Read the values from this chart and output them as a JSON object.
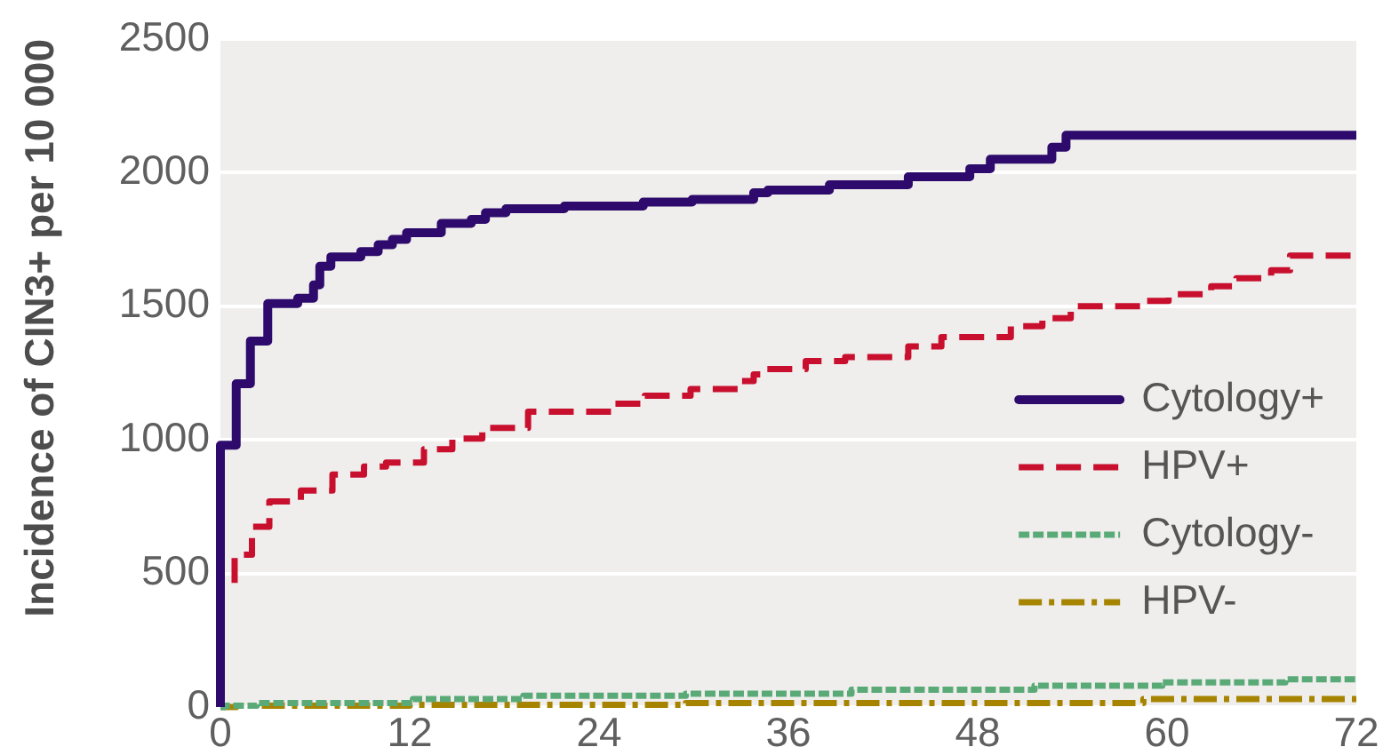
{
  "chart_data": {
    "type": "step",
    "ylabel": "Incidence of CIN3+ per 10 000",
    "xlim": [
      0,
      72
    ],
    "xticks": [
      0,
      12,
      24,
      36,
      48,
      60,
      72
    ],
    "ylim": [
      0,
      2500
    ],
    "yticks": [
      0,
      500,
      1000,
      1500,
      2000,
      2500
    ],
    "grid": "y",
    "legend": "bottom right",
    "series": [
      {
        "name": "Cytology+",
        "color": "#2d0a6b",
        "line_style": "solid",
        "x": [
          0,
          0,
          1.0,
          1.9,
          3.0,
          4.9,
          5.9,
          6.3,
          7.0,
          8.9,
          10.0,
          10.9,
          11.8,
          14.0,
          15.9,
          16.8,
          18.1,
          21.8,
          26.8,
          29.9,
          33.8,
          34.7,
          38.6,
          43.6,
          47.5,
          48.8,
          52.7,
          53.6,
          72
        ],
        "values": [
          0,
          980,
          1210,
          1370,
          1510,
          1530,
          1580,
          1650,
          1685,
          1705,
          1730,
          1750,
          1775,
          1810,
          1825,
          1850,
          1865,
          1875,
          1890,
          1900,
          1925,
          1935,
          1955,
          1985,
          2015,
          2050,
          2095,
          2140,
          2140
        ]
      },
      {
        "name": "HPV+",
        "color": "#c8102e",
        "line_style": "dashed",
        "x": [
          0.9,
          0.9,
          2.0,
          3.1,
          5.1,
          7.1,
          9.1,
          10.5,
          12.9,
          14.7,
          16.6,
          19.5,
          24.8,
          26.9,
          29.8,
          32.8,
          33.8,
          34.5,
          37.1,
          39.6,
          43.6,
          45.7,
          50.1,
          52.1,
          53.9,
          58.6,
          60.1,
          62.8,
          64.4,
          66.6,
          67.8,
          72
        ],
        "values": [
          465,
          570,
          675,
          770,
          810,
          870,
          900,
          915,
          965,
          1005,
          1045,
          1105,
          1135,
          1165,
          1190,
          1220,
          1245,
          1265,
          1295,
          1310,
          1350,
          1385,
          1425,
          1455,
          1500,
          1520,
          1545,
          1575,
          1605,
          1635,
          1690,
          1690
        ]
      },
      {
        "name": "Cytology-",
        "color": "#5aaa78",
        "line_style": "dotted",
        "x": [
          0,
          0.3,
          2.3,
          12.2,
          19.2,
          29.5,
          40.0,
          51.6,
          59.7,
          67.5,
          72
        ],
        "values": [
          0,
          5,
          15,
          30,
          42,
          50,
          65,
          80,
          92,
          104,
          104
        ]
      },
      {
        "name": "HPV-",
        "color": "#a68400",
        "line_style": "dashdot",
        "x": [
          0,
          1.0,
          12.0,
          29.5,
          58.5,
          72
        ],
        "values": [
          0,
          5,
          8,
          15,
          30,
          30
        ]
      }
    ]
  }
}
